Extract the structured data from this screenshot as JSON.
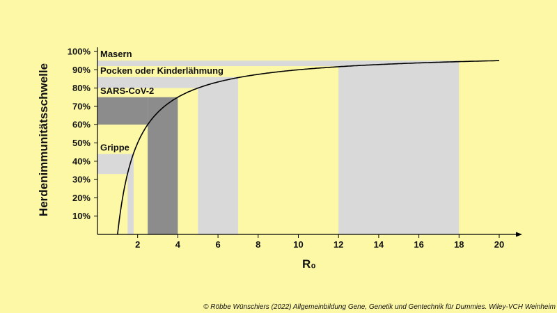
{
  "chart_data": {
    "type": "area",
    "title": "",
    "xlabel": "R₀",
    "ylabel": "Herdenimmunitätsschwelle",
    "xlim": [
      0,
      21
    ],
    "ylim": [
      0,
      100
    ],
    "x_ticks": [
      2,
      4,
      6,
      8,
      10,
      12,
      14,
      16,
      18,
      20
    ],
    "y_ticks": [
      10,
      20,
      30,
      40,
      50,
      60,
      70,
      80,
      90,
      100
    ],
    "y_tick_suffix": "%",
    "grid": false,
    "curve": {
      "formula": "1 - 1/R0",
      "x_start": 1,
      "x_end": 20,
      "color": "#000000"
    },
    "diseases": [
      {
        "name": "Masern",
        "r0_range": [
          12,
          18
        ],
        "threshold_range": [
          92,
          95
        ],
        "color": "#d9d9d9"
      },
      {
        "name": "Pocken oder Kinderlähmung",
        "r0_range": [
          5,
          7
        ],
        "threshold_range": [
          80,
          86
        ],
        "color": "#d9d9d9"
      },
      {
        "name": "SARS-CoV-2",
        "r0_range": [
          2.5,
          4
        ],
        "threshold_range": [
          60,
          75
        ],
        "color": "#8c8c8c"
      },
      {
        "name": "Grippe",
        "r0_range": [
          1.5,
          1.8
        ],
        "threshold_range": [
          33,
          44
        ],
        "color": "#d9d9d9"
      }
    ]
  },
  "credit": "© Röbbe Wünschiers (2022) Allgemeinbildung Gene, Genetik und Gentechnik für Dummies. Wiley-VCH Weinheim"
}
